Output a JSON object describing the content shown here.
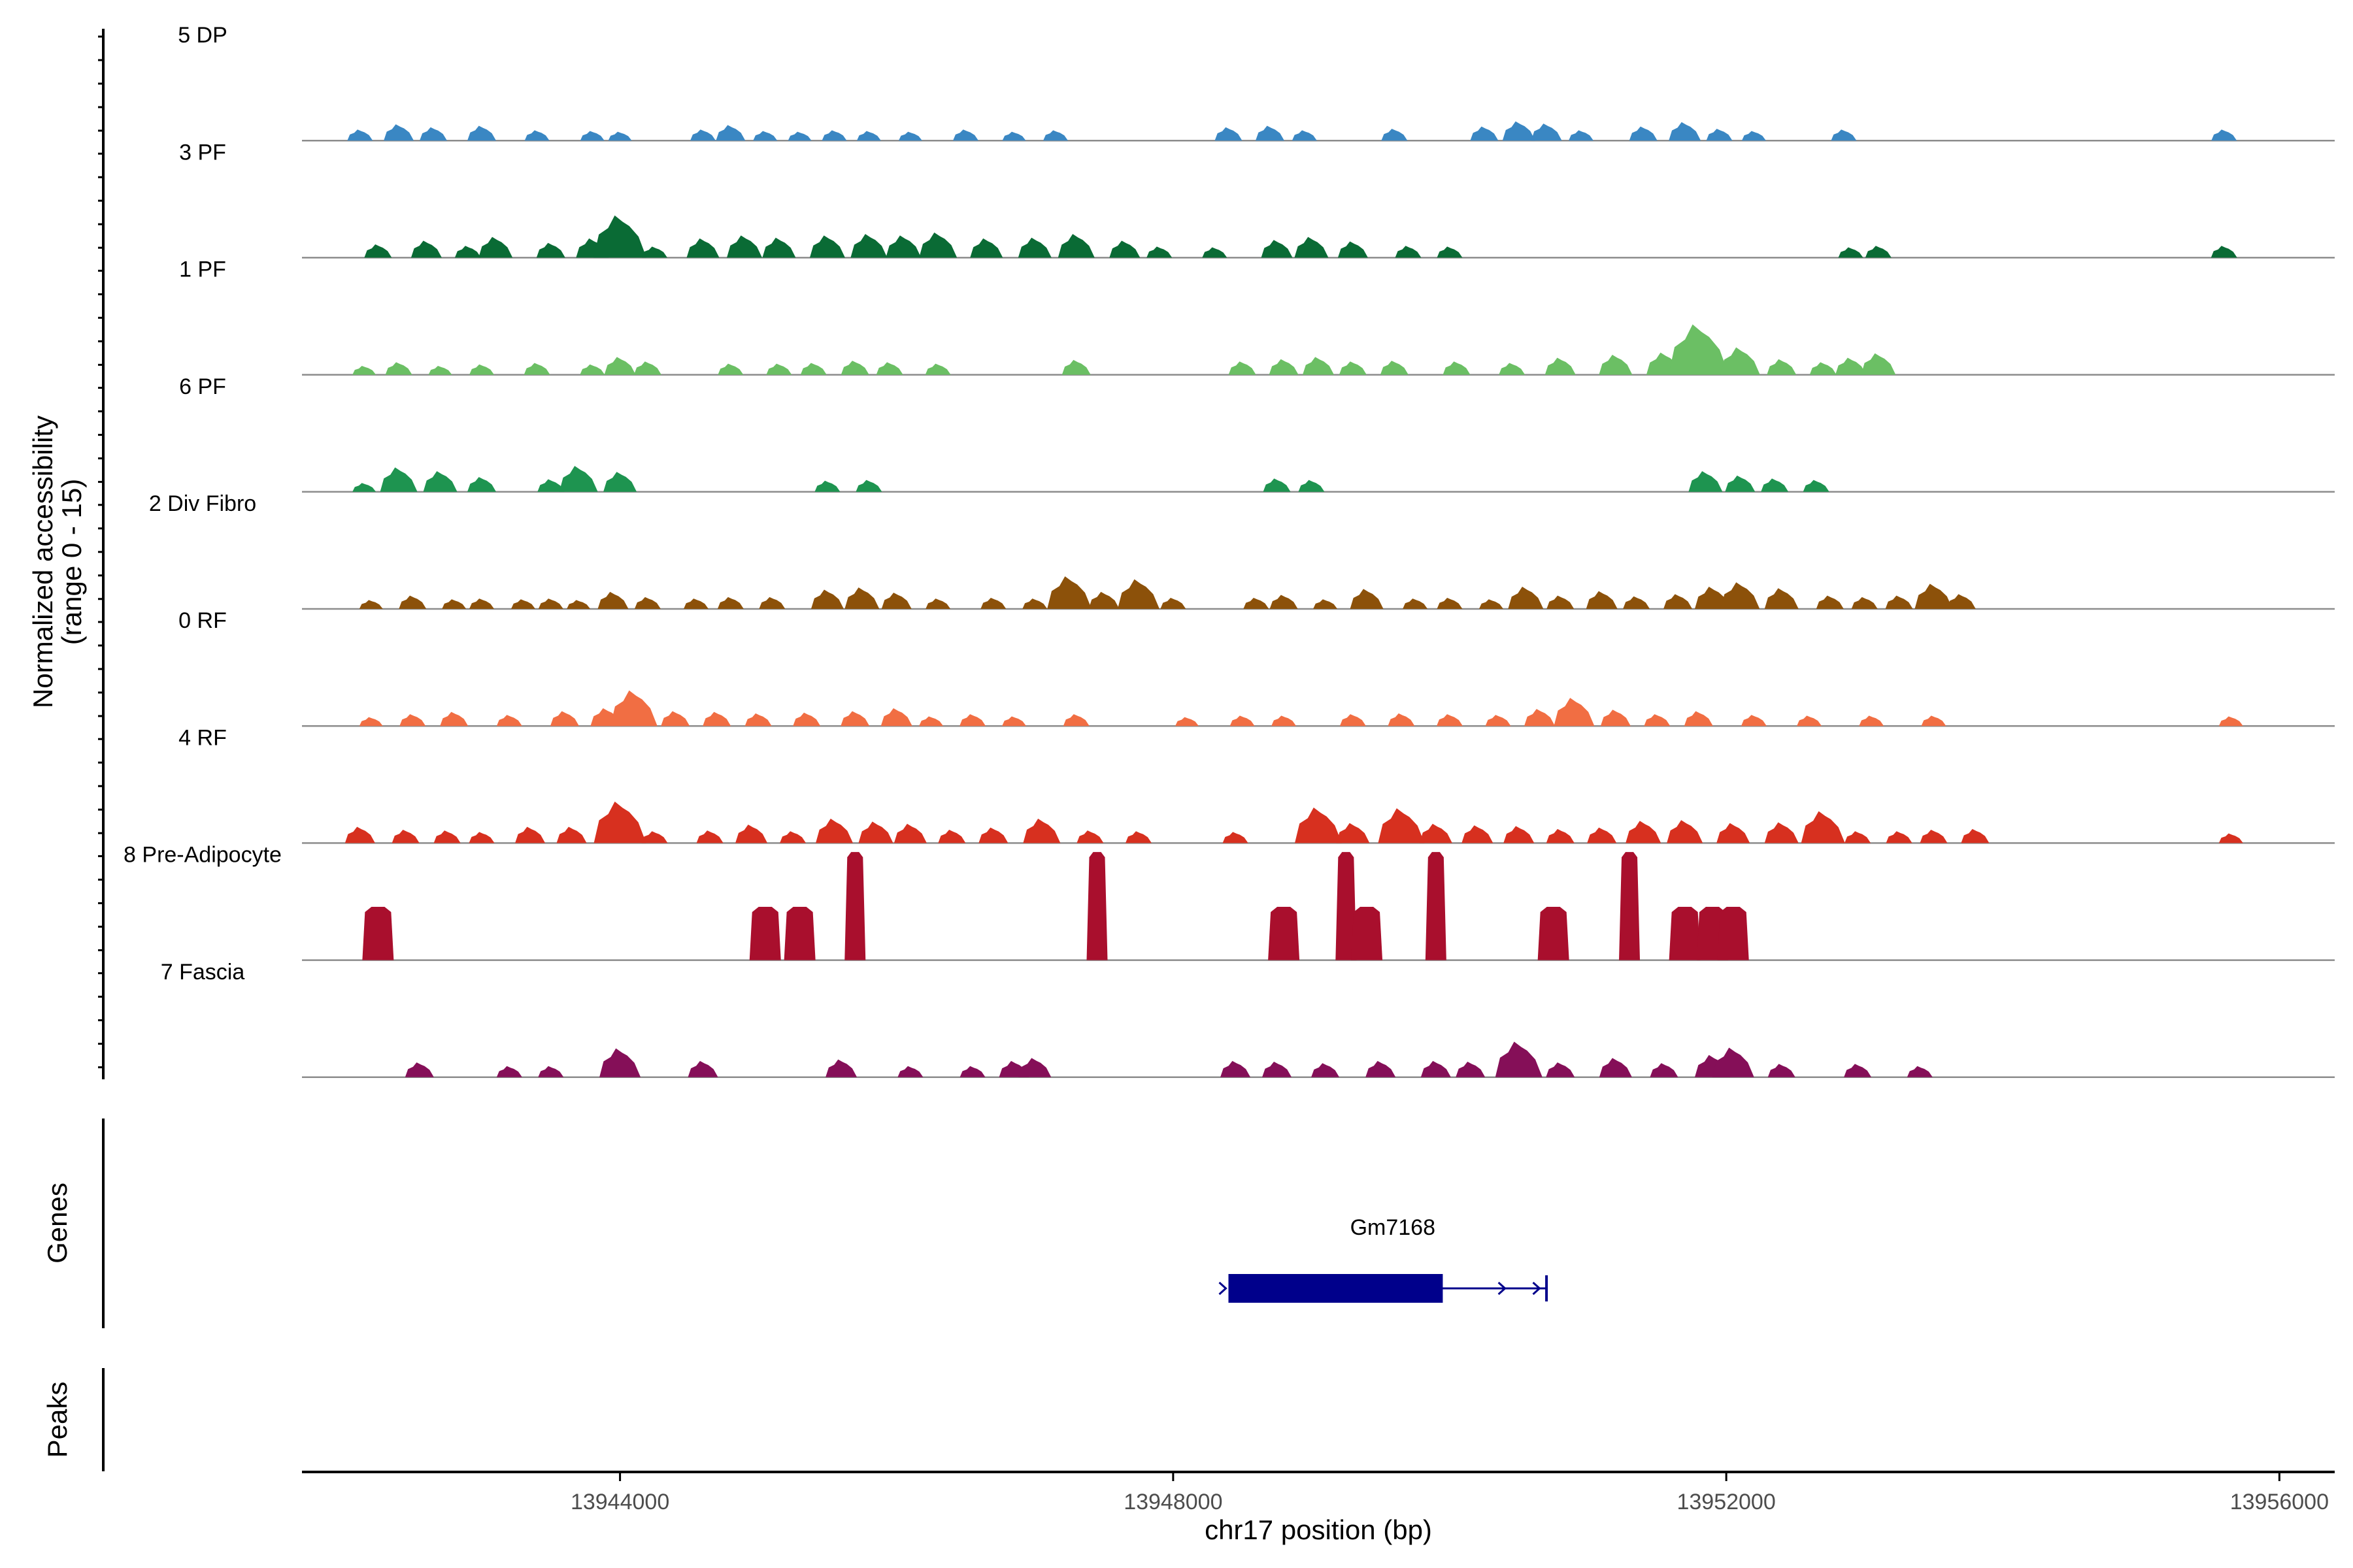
{
  "chart_data": {
    "type": "area",
    "title": "",
    "ylabel_line1": "Normalized accessibility",
    "ylabel_line2": "(range 0 - 15)",
    "xlabel": "chr17 position (bp)",
    "xlim": [
      13941700,
      13956400
    ],
    "xticks": [
      13944000,
      13948000,
      13952000,
      13956000
    ],
    "xtick_labels": [
      "13944000",
      "13948000",
      "13952000",
      "13956000"
    ],
    "ylim": [
      0,
      15
    ],
    "genes_label": "Genes",
    "peaks_label": "Peaks",
    "gene": {
      "name": "Gm7168",
      "start": 13948400,
      "end": 13950700,
      "thick_start": 13948400,
      "thick_end": 13949950,
      "color": "#00008B"
    },
    "series": [
      {
        "name": "5 DP",
        "color": "#3A87C3",
        "peaks": [
          [
            13942120,
            1.5
          ],
          [
            13942400,
            2.2
          ],
          [
            13942650,
            1.8
          ],
          [
            13943000,
            2.0
          ],
          [
            13943400,
            1.4
          ],
          [
            13943800,
            1.3
          ],
          [
            13944000,
            1.2
          ],
          [
            13944600,
            1.5
          ],
          [
            13944800,
            2.1
          ],
          [
            13945050,
            1.3
          ],
          [
            13945300,
            1.2
          ],
          [
            13945550,
            1.4
          ],
          [
            13945800,
            1.3
          ],
          [
            13946100,
            1.2
          ],
          [
            13946500,
            1.5
          ],
          [
            13946850,
            1.2
          ],
          [
            13947150,
            1.4
          ],
          [
            13948400,
            1.8
          ],
          [
            13948700,
            2.0
          ],
          [
            13948950,
            1.4
          ],
          [
            13949600,
            1.6
          ],
          [
            13950250,
            1.9
          ],
          [
            13950500,
            2.6
          ],
          [
            13950700,
            2.3
          ],
          [
            13950950,
            1.4
          ],
          [
            13951400,
            1.9
          ],
          [
            13951700,
            2.5
          ],
          [
            13951950,
            1.6
          ],
          [
            13952200,
            1.3
          ],
          [
            13952850,
            1.5
          ],
          [
            13955600,
            1.5
          ]
        ]
      },
      {
        "name": "3 PF",
        "color": "#0A6B35",
        "peaks": [
          [
            13942250,
            1.8
          ],
          [
            13942600,
            2.3
          ],
          [
            13942900,
            1.6
          ],
          [
            13943100,
            2.8
          ],
          [
            13943500,
            2.0
          ],
          [
            13943800,
            2.6
          ],
          [
            13944000,
            5.7
          ],
          [
            13944250,
            1.5
          ],
          [
            13944600,
            2.6
          ],
          [
            13944900,
            3.0
          ],
          [
            13945150,
            2.7
          ],
          [
            13945500,
            3.0
          ],
          [
            13945800,
            3.2
          ],
          [
            13946050,
            3.0
          ],
          [
            13946300,
            3.4
          ],
          [
            13946650,
            2.6
          ],
          [
            13947000,
            2.7
          ],
          [
            13947300,
            3.2
          ],
          [
            13947650,
            2.3
          ],
          [
            13947900,
            1.5
          ],
          [
            13948300,
            1.4
          ],
          [
            13948750,
            2.4
          ],
          [
            13949000,
            2.8
          ],
          [
            13949300,
            2.2
          ],
          [
            13949700,
            1.6
          ],
          [
            13950000,
            1.5
          ],
          [
            13952900,
            1.4
          ],
          [
            13953100,
            1.6
          ],
          [
            13955600,
            1.6
          ]
        ]
      },
      {
        "name": "1 PF",
        "color": "#6BBF64",
        "peaks": [
          [
            13942150,
            1.2
          ],
          [
            13942400,
            1.7
          ],
          [
            13942700,
            1.2
          ],
          [
            13943000,
            1.4
          ],
          [
            13943400,
            1.6
          ],
          [
            13943800,
            1.4
          ],
          [
            13944000,
            2.4
          ],
          [
            13944200,
            1.8
          ],
          [
            13944800,
            1.5
          ],
          [
            13945150,
            1.5
          ],
          [
            13945400,
            1.6
          ],
          [
            13945700,
            1.9
          ],
          [
            13945950,
            1.7
          ],
          [
            13946300,
            1.5
          ],
          [
            13947300,
            2.0
          ],
          [
            13948500,
            1.8
          ],
          [
            13948800,
            2.1
          ],
          [
            13949050,
            2.4
          ],
          [
            13949300,
            1.8
          ],
          [
            13949600,
            1.9
          ],
          [
            13950050,
            1.8
          ],
          [
            13950450,
            1.6
          ],
          [
            13950800,
            2.3
          ],
          [
            13951200,
            2.7
          ],
          [
            13951550,
            3.0
          ],
          [
            13951800,
            6.8
          ],
          [
            13952100,
            3.7
          ],
          [
            13952400,
            2.1
          ],
          [
            13952700,
            1.7
          ],
          [
            13952900,
            2.3
          ],
          [
            13953100,
            2.9
          ]
        ]
      },
      {
        "name": "6 PF",
        "color": "#1E9450",
        "peaks": [
          [
            13942150,
            1.2
          ],
          [
            13942400,
            3.3
          ],
          [
            13942700,
            2.8
          ],
          [
            13943000,
            2.0
          ],
          [
            13943500,
            1.7
          ],
          [
            13943700,
            3.5
          ],
          [
            13944000,
            2.7
          ],
          [
            13945500,
            1.5
          ],
          [
            13945800,
            1.6
          ],
          [
            13948750,
            1.8
          ],
          [
            13949000,
            1.6
          ],
          [
            13951850,
            2.8
          ],
          [
            13952100,
            2.2
          ],
          [
            13952350,
            1.8
          ],
          [
            13952650,
            1.6
          ]
        ]
      },
      {
        "name": "2 Div Fibro",
        "color": "#8C510A",
        "peaks": [
          [
            13942200,
            1.2
          ],
          [
            13942500,
            1.8
          ],
          [
            13942800,
            1.3
          ],
          [
            13943000,
            1.4
          ],
          [
            13943300,
            1.3
          ],
          [
            13943500,
            1.4
          ],
          [
            13943700,
            1.2
          ],
          [
            13943950,
            2.3
          ],
          [
            13944200,
            1.6
          ],
          [
            13944550,
            1.4
          ],
          [
            13944800,
            1.6
          ],
          [
            13945100,
            1.6
          ],
          [
            13945500,
            2.6
          ],
          [
            13945750,
            2.9
          ],
          [
            13946000,
            2.2
          ],
          [
            13946300,
            1.4
          ],
          [
            13946700,
            1.5
          ],
          [
            13947000,
            1.4
          ],
          [
            13947250,
            4.4
          ],
          [
            13947500,
            2.3
          ],
          [
            13947750,
            4.0
          ],
          [
            13948000,
            1.5
          ],
          [
            13948600,
            1.5
          ],
          [
            13948800,
            1.9
          ],
          [
            13949100,
            1.3
          ],
          [
            13949400,
            2.7
          ],
          [
            13949750,
            1.4
          ],
          [
            13950000,
            1.5
          ],
          [
            13950300,
            1.3
          ],
          [
            13950550,
            3.0
          ],
          [
            13950800,
            1.8
          ],
          [
            13951100,
            2.4
          ],
          [
            13951350,
            1.7
          ],
          [
            13951650,
            2.0
          ],
          [
            13951900,
            3.0
          ],
          [
            13952100,
            3.6
          ],
          [
            13952400,
            2.8
          ],
          [
            13952750,
            1.8
          ],
          [
            13953000,
            1.6
          ],
          [
            13953250,
            1.8
          ],
          [
            13953500,
            3.4
          ],
          [
            13953700,
            2.0
          ]
        ]
      },
      {
        "name": "0 RF",
        "color": "#F16E43",
        "peaks": [
          [
            13942200,
            1.2
          ],
          [
            13942500,
            1.6
          ],
          [
            13942800,
            1.9
          ],
          [
            13943200,
            1.5
          ],
          [
            13943600,
            2.0
          ],
          [
            13943900,
            2.4
          ],
          [
            13944100,
            4.8
          ],
          [
            13944400,
            2.0
          ],
          [
            13944700,
            1.9
          ],
          [
            13945000,
            1.7
          ],
          [
            13945350,
            1.8
          ],
          [
            13945700,
            2.0
          ],
          [
            13946000,
            2.4
          ],
          [
            13946250,
            1.3
          ],
          [
            13946550,
            1.6
          ],
          [
            13946850,
            1.3
          ],
          [
            13947300,
            1.6
          ],
          [
            13948100,
            1.2
          ],
          [
            13948500,
            1.4
          ],
          [
            13948800,
            1.4
          ],
          [
            13949300,
            1.6
          ],
          [
            13949650,
            1.7
          ],
          [
            13950000,
            1.6
          ],
          [
            13950350,
            1.5
          ],
          [
            13950650,
            2.3
          ],
          [
            13950900,
            3.8
          ],
          [
            13951200,
            2.2
          ],
          [
            13951500,
            1.6
          ],
          [
            13951800,
            2.0
          ],
          [
            13952200,
            1.5
          ],
          [
            13952600,
            1.4
          ],
          [
            13953050,
            1.4
          ],
          [
            13953500,
            1.4
          ],
          [
            13955650,
            1.3
          ]
        ]
      },
      {
        "name": "4 RF",
        "color": "#D7301F",
        "peaks": [
          [
            13942120,
            2.2
          ],
          [
            13942450,
            1.8
          ],
          [
            13942750,
            1.7
          ],
          [
            13943000,
            1.5
          ],
          [
            13943350,
            2.2
          ],
          [
            13943650,
            2.2
          ],
          [
            13944000,
            5.6
          ],
          [
            13944250,
            1.6
          ],
          [
            13944650,
            1.7
          ],
          [
            13944950,
            2.5
          ],
          [
            13945250,
            1.6
          ],
          [
            13945550,
            3.3
          ],
          [
            13945850,
            2.9
          ],
          [
            13946100,
            2.6
          ],
          [
            13946400,
            1.8
          ],
          [
            13946700,
            2.1
          ],
          [
            13947050,
            3.3
          ],
          [
            13947400,
            1.7
          ],
          [
            13947750,
            1.6
          ],
          [
            13948450,
            1.5
          ],
          [
            13949050,
            4.8
          ],
          [
            13949300,
            2.7
          ],
          [
            13949650,
            4.7
          ],
          [
            13949900,
            2.6
          ],
          [
            13950200,
            2.4
          ],
          [
            13950500,
            2.3
          ],
          [
            13950800,
            1.9
          ],
          [
            13951100,
            2.1
          ],
          [
            13951400,
            3.0
          ],
          [
            13951700,
            3.1
          ],
          [
            13952050,
            2.7
          ],
          [
            13952400,
            2.8
          ],
          [
            13952700,
            4.3
          ],
          [
            13952950,
            1.6
          ],
          [
            13953250,
            1.6
          ],
          [
            13953500,
            1.8
          ],
          [
            13953800,
            1.9
          ],
          [
            13955650,
            1.3
          ]
        ]
      },
      {
        "name": "8 Pre-Adipocyte",
        "color": "#A90F2D",
        "peaks": [
          [
            13942250,
            7.2
          ],
          [
            13945050,
            7.2
          ],
          [
            13945300,
            7.2
          ],
          [
            13945700,
            14.6
          ],
          [
            13947450,
            14.6
          ],
          [
            13948800,
            7.2
          ],
          [
            13949250,
            14.6
          ],
          [
            13949400,
            7.2
          ],
          [
            13949900,
            14.6
          ],
          [
            13950750,
            7.2
          ],
          [
            13951300,
            14.6
          ],
          [
            13951700,
            7.2
          ],
          [
            13951900,
            7.2
          ],
          [
            13952050,
            7.2
          ]
        ]
      },
      {
        "name": "7 Fascia",
        "color": "#850F58",
        "peaks": [
          [
            13942550,
            2.0
          ],
          [
            13943200,
            1.5
          ],
          [
            13943500,
            1.5
          ],
          [
            13944000,
            3.9
          ],
          [
            13944600,
            2.2
          ],
          [
            13945600,
            2.4
          ],
          [
            13946100,
            1.5
          ],
          [
            13946550,
            1.5
          ],
          [
            13946850,
            2.2
          ],
          [
            13947000,
            2.6
          ],
          [
            13948450,
            2.2
          ],
          [
            13948750,
            2.1
          ],
          [
            13949100,
            1.9
          ],
          [
            13949500,
            2.2
          ],
          [
            13949900,
            2.2
          ],
          [
            13950150,
            2.1
          ],
          [
            13950500,
            4.8
          ],
          [
            13950800,
            2.0
          ],
          [
            13951200,
            2.6
          ],
          [
            13951550,
            1.9
          ],
          [
            13951900,
            3.0
          ],
          [
            13952050,
            4.0
          ],
          [
            13952400,
            1.8
          ],
          [
            13952950,
            1.8
          ],
          [
            13953400,
            1.5
          ]
        ]
      }
    ]
  }
}
